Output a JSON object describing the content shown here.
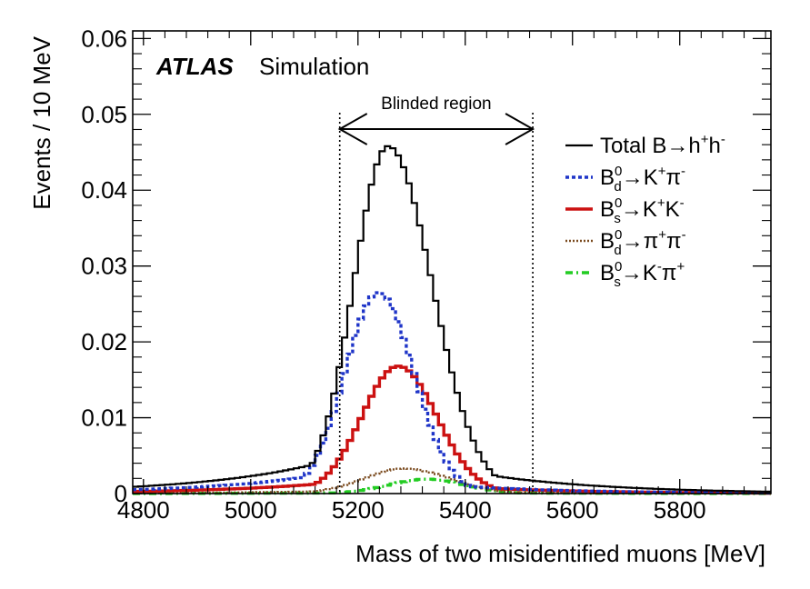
{
  "chart_data": {
    "type": "line",
    "title": "",
    "brand": "ATLAS",
    "brand_suffix": "Simulation",
    "xlabel": "Mass of two misidentified muons [MeV]",
    "ylabel": "Events / 10 MeV",
    "xlim": [
      4780,
      5970
    ],
    "ylim": [
      0,
      0.061
    ],
    "xticks": [
      4800,
      5000,
      5200,
      5400,
      5600,
      5800
    ],
    "yticks": [
      0,
      0.01,
      0.02,
      0.03,
      0.04,
      0.05,
      0.06
    ],
    "ytick_labels": [
      "0",
      "0.01",
      "0.02",
      "0.03",
      "0.04",
      "0.05",
      "0.06"
    ],
    "bin_width": 10,
    "blinded_region": {
      "label": "Blinded region",
      "x_min": 5166,
      "x_max": 5526
    },
    "legend_position": "top-right",
    "series": [
      {
        "name": "Total B→h+h-",
        "legend": {
          "base": "Total B→h",
          "sup1": "+",
          "mid": "h",
          "sup2": "-"
        },
        "color": "#000000",
        "style": "solid",
        "peak_x": 5256,
        "peak_y": 0.0458,
        "sigma_left": 64,
        "sigma_right": 82,
        "tail_left": 0.007,
        "tail_right": 0.0055,
        "tail_len": 230
      },
      {
        "name": "B0d→K+π-",
        "legend": {
          "base": "B",
          "sup0": "0",
          "sub": "d",
          "rest": "→K",
          "sup1": "+",
          "mid": "π",
          "sup2": "-"
        },
        "color": "#1f35c8",
        "style": "dotted",
        "peak_x": 5238,
        "peak_y": 0.0265,
        "sigma_left": 62,
        "sigma_right": 66,
        "tail_left": 0.004,
        "tail_right": 0.002,
        "tail_len": 220
      },
      {
        "name": "B0s→K+K-",
        "legend": {
          "base": "B",
          "sup0": "0",
          "sub": "s",
          "rest": "→K",
          "sup1": "+",
          "mid": "K",
          "sup2": "-"
        },
        "color": "#cc1111",
        "style": "solid-thick",
        "peak_x": 5275,
        "peak_y": 0.0168,
        "sigma_left": 68,
        "sigma_right": 72,
        "tail_left": 0.0025,
        "tail_right": 0.0015,
        "tail_len": 220
      },
      {
        "name": "B0d→π+π-",
        "legend": {
          "base": "B",
          "sup0": "0",
          "sub": "d",
          "rest": "→π",
          "sup1": "+",
          "mid": "π",
          "sup2": "-"
        },
        "color": "#7a4a1e",
        "style": "dotted-fine",
        "peak_x": 5285,
        "peak_y": 0.0033,
        "sigma_left": 75,
        "sigma_right": 85,
        "tail_left": 0.0006,
        "tail_right": 0.0003,
        "tail_len": 220
      },
      {
        "name": "B0s→K-π+",
        "legend": {
          "base": "B",
          "sup0": "0",
          "sub": "s",
          "rest": "→K",
          "sup1": "-",
          "mid": "π",
          "sup2": "+"
        },
        "color": "#22cc22",
        "style": "dashdot",
        "peak_x": 5328,
        "peak_y": 0.0019,
        "sigma_left": 70,
        "sigma_right": 70,
        "tail_left": 0.0002,
        "tail_right": 0.0002,
        "tail_len": 200
      }
    ]
  }
}
